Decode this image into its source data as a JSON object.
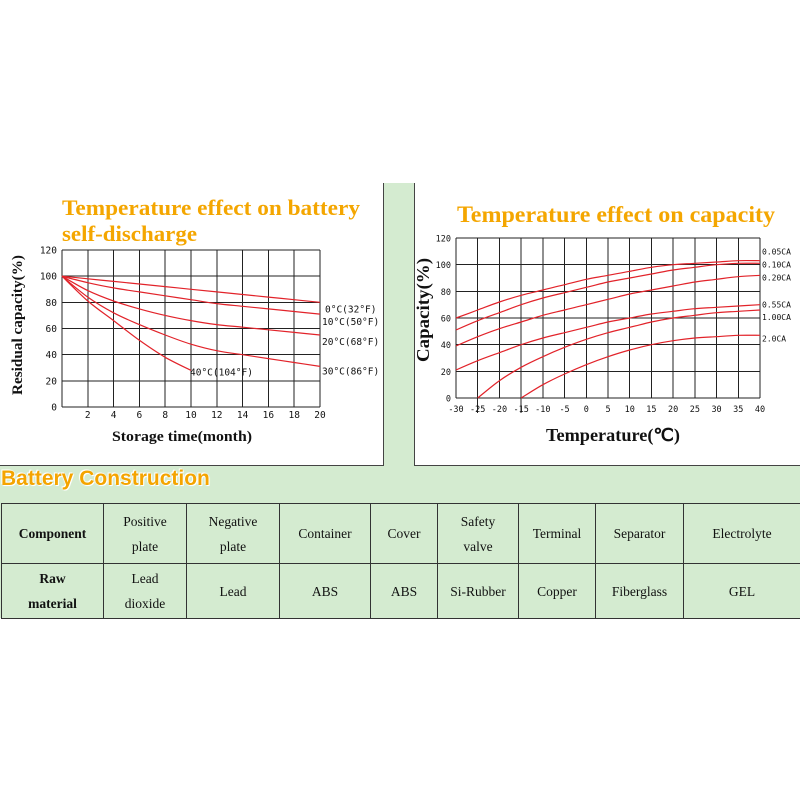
{
  "chart_data": [
    {
      "type": "line",
      "title_lines": [
        "Temperature effect on battery",
        "self-discharge"
      ],
      "xlabel": "Storage time(month)",
      "ylabel": "Residual capacity(%)",
      "xlim": [
        0,
        20
      ],
      "ylim": [
        0,
        120
      ],
      "x_ticks": [
        2,
        4,
        6,
        8,
        10,
        12,
        14,
        16,
        18,
        20
      ],
      "y_ticks": [
        0,
        20,
        40,
        60,
        80,
        100,
        120
      ],
      "grid": true,
      "series": [
        {
          "name": "0°C(32°F)",
          "x": [
            0,
            2,
            4,
            6,
            8,
            10,
            12,
            14,
            16,
            18,
            20
          ],
          "values": [
            100,
            98,
            96,
            94,
            92,
            90,
            88,
            86,
            84,
            82,
            80
          ]
        },
        {
          "name": "10°C(50°F)",
          "x": [
            0,
            2,
            4,
            6,
            8,
            10,
            12,
            14,
            16,
            18,
            20
          ],
          "values": [
            100,
            95,
            91,
            88,
            85,
            82,
            79,
            77,
            75,
            73,
            71
          ]
        },
        {
          "name": "20°C(68°F)",
          "x": [
            0,
            2,
            4,
            6,
            8,
            10,
            12,
            14,
            16,
            18,
            20
          ],
          "values": [
            100,
            89,
            81,
            75,
            70,
            66,
            63,
            61,
            59,
            57,
            55
          ]
        },
        {
          "name": "30°C(86°F)",
          "x": [
            0,
            2,
            4,
            6,
            8,
            10,
            12,
            14,
            16,
            18,
            20
          ],
          "values": [
            100,
            84,
            72,
            63,
            55,
            48,
            43,
            40,
            37,
            34,
            31
          ]
        },
        {
          "name": "40°C(104°F)",
          "x": [
            0,
            2,
            4,
            6,
            8,
            10
          ],
          "values": [
            100,
            81,
            66,
            51,
            38,
            28
          ]
        }
      ]
    },
    {
      "type": "line",
      "title": "Temperature effect on capacity",
      "xlabel": "Temperature(℃)",
      "ylabel": "Capacity(%)",
      "xlim": [
        -30,
        40
      ],
      "ylim": [
        0,
        120
      ],
      "x_ticks": [
        -30,
        -25,
        -20,
        -15,
        -10,
        -5,
        0,
        5,
        10,
        15,
        20,
        25,
        30,
        35,
        40
      ],
      "y_ticks": [
        0,
        20,
        40,
        60,
        80,
        100,
        120
      ],
      "grid": true,
      "series": [
        {
          "name": "0.05CA",
          "x": [
            -30,
            -25,
            -20,
            -15,
            -10,
            -5,
            0,
            5,
            10,
            15,
            20,
            25,
            30,
            35,
            40
          ],
          "values": [
            60,
            66,
            72,
            77,
            81,
            85,
            89,
            92,
            95,
            98,
            100,
            101,
            102,
            103,
            103
          ]
        },
        {
          "name": "0.10CA",
          "x": [
            -30,
            -25,
            -20,
            -15,
            -10,
            -5,
            0,
            5,
            10,
            15,
            20,
            25,
            30,
            35,
            40
          ],
          "values": [
            51,
            58,
            64,
            70,
            75,
            79,
            83,
            87,
            90,
            93,
            96,
            98,
            100,
            101,
            101
          ]
        },
        {
          "name": "0.20CA",
          "x": [
            -30,
            -25,
            -20,
            -15,
            -10,
            -5,
            0,
            5,
            10,
            15,
            20,
            25,
            30,
            35,
            40
          ],
          "values": [
            39,
            46,
            52,
            57,
            62,
            66,
            70,
            74,
            78,
            81,
            84,
            87,
            89,
            91,
            92
          ]
        },
        {
          "name": "0.55CA",
          "x": [
            -30,
            -25,
            -20,
            -15,
            -10,
            -5,
            0,
            5,
            10,
            15,
            20,
            25,
            30,
            35,
            40
          ],
          "values": [
            21,
            28,
            34,
            40,
            45,
            49,
            53,
            57,
            60,
            63,
            65,
            67,
            68,
            69,
            70
          ]
        },
        {
          "name": "1.00CA",
          "x": [
            -25,
            -20,
            -15,
            -10,
            -5,
            0,
            5,
            10,
            15,
            20,
            25,
            30,
            35,
            40
          ],
          "values": [
            0,
            13,
            23,
            31,
            38,
            44,
            49,
            53,
            57,
            60,
            62,
            64,
            65,
            66
          ]
        },
        {
          "name": "2.0CA",
          "x": [
            -15,
            -10,
            -5,
            0,
            5,
            10,
            15,
            20,
            25,
            30,
            35,
            40
          ],
          "values": [
            0,
            10,
            18,
            25,
            31,
            36,
            40,
            43,
            45,
            46,
            47,
            47
          ]
        }
      ]
    }
  ],
  "colors": {
    "background_band": "#d4ebd0",
    "title": "#f4a600",
    "heading": "#f4a400",
    "line": "#e2232a",
    "grid": "#222222"
  },
  "construction": {
    "heading": "Battery Construction",
    "row_labels": [
      "Component",
      "Raw material"
    ],
    "columns": [
      {
        "component": "Positive plate",
        "material": "Lead dioxide"
      },
      {
        "component": "Negative plate",
        "material": "Lead"
      },
      {
        "component": "Container",
        "material": "ABS"
      },
      {
        "component": "Cover",
        "material": "ABS"
      },
      {
        "component": "Safety valve",
        "material": "Si-Rubber"
      },
      {
        "component": "Terminal",
        "material": "Copper"
      },
      {
        "component": "Separator",
        "material": "Fiberglass"
      },
      {
        "component": "Electrolyte",
        "material": "GEL"
      }
    ]
  }
}
